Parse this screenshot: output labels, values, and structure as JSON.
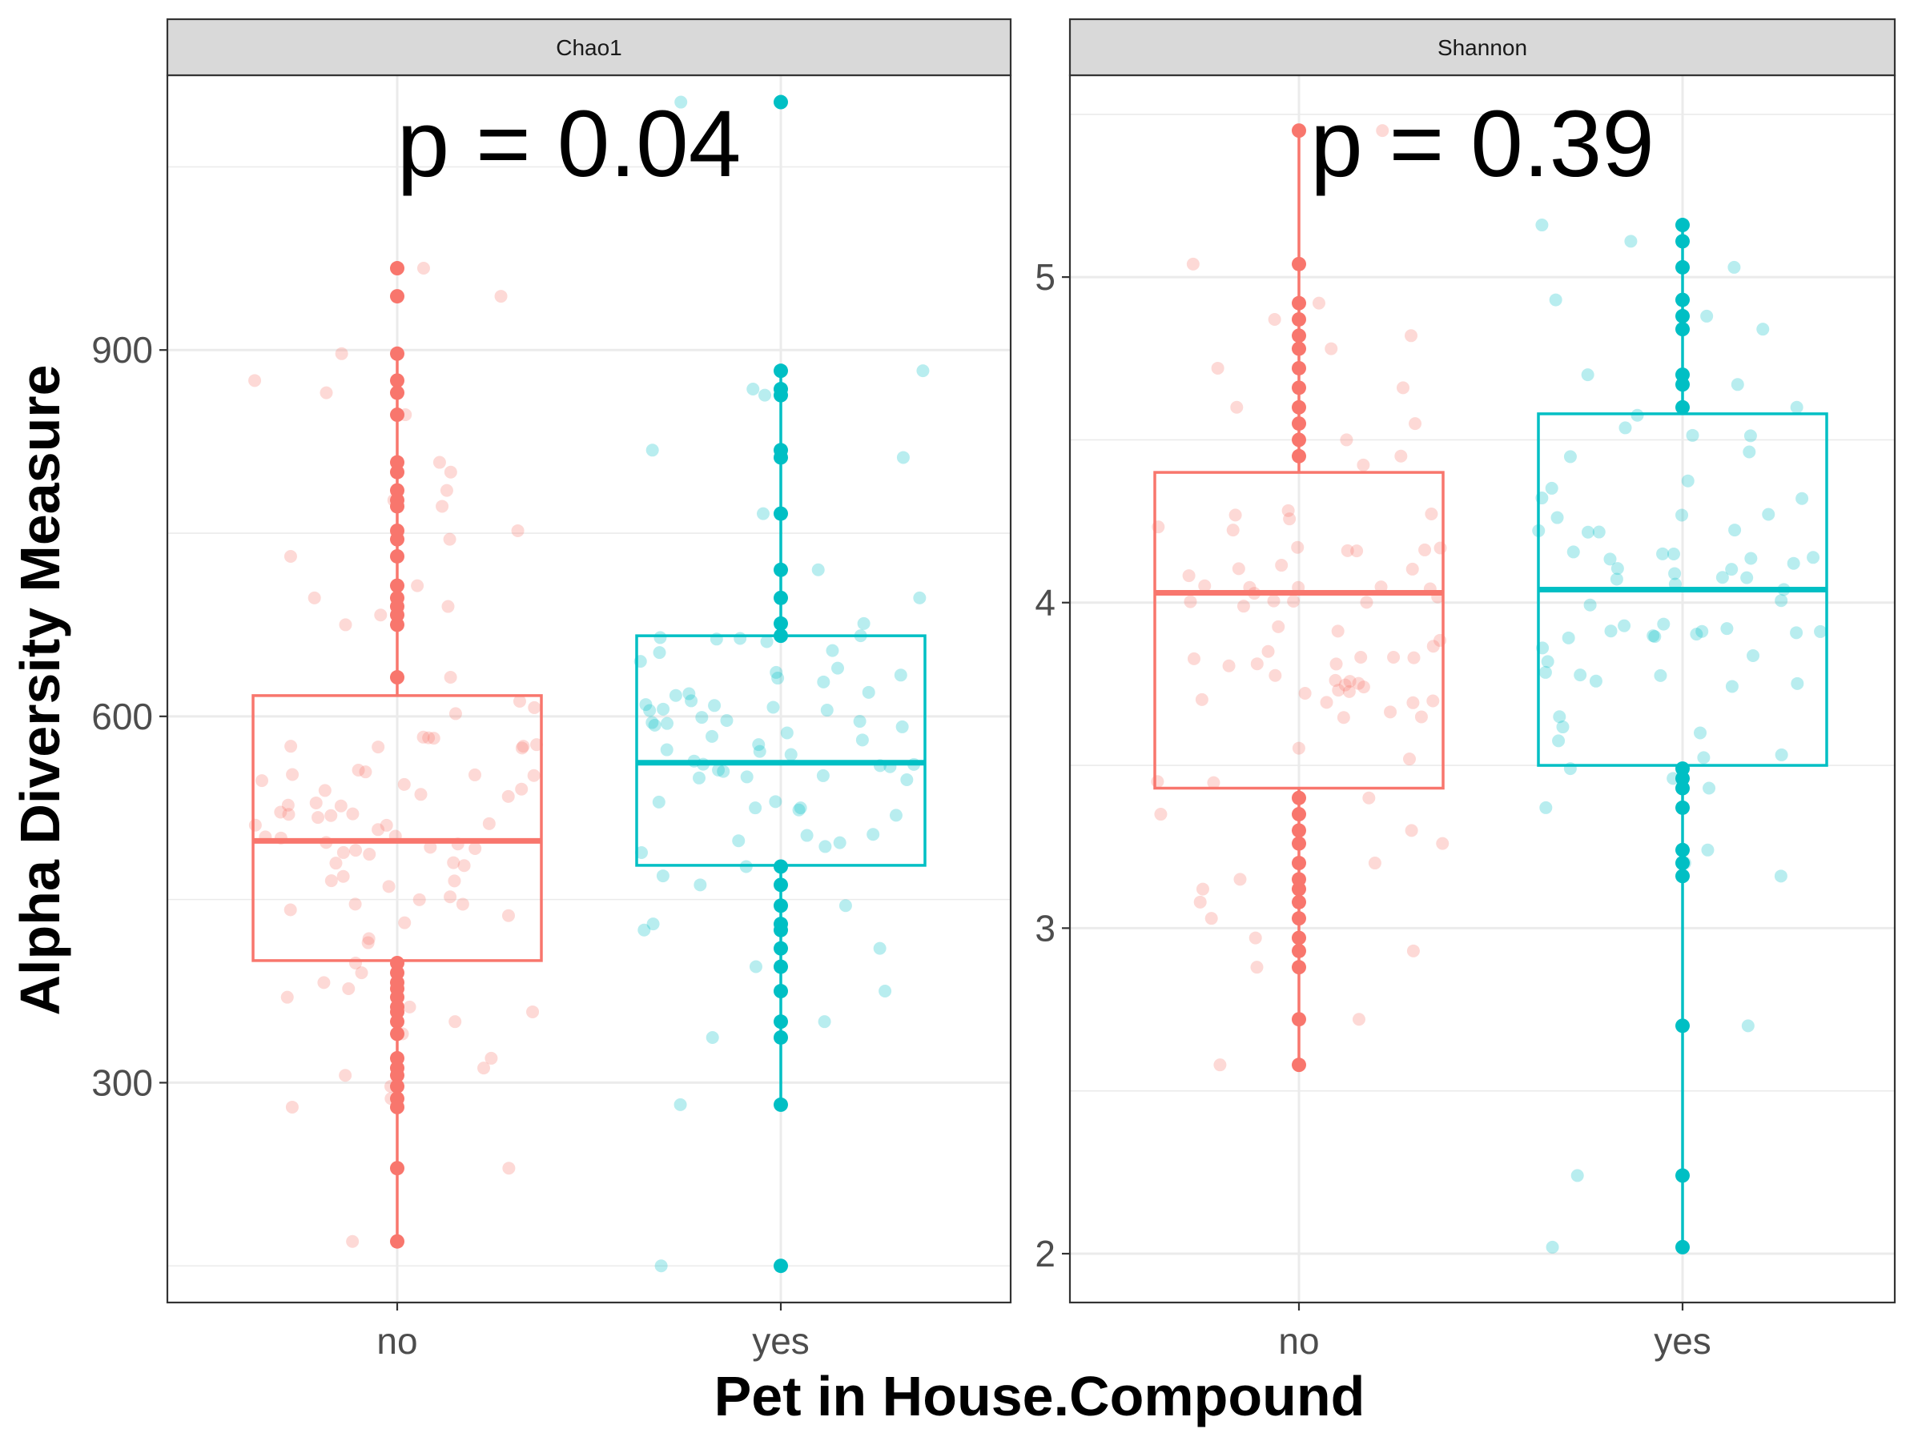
{
  "figure": {
    "xlabel": "Pet in House.Compound",
    "ylabel": "Alpha Diversity Measure"
  },
  "chart_data": [
    {
      "type": "box",
      "facet": "Chao1",
      "annotation": "p = 0.04",
      "categories": [
        "no",
        "yes"
      ],
      "colors": {
        "no": "#F8766D",
        "yes": "#00BFC4"
      },
      "ylim": [
        120,
        1125
      ],
      "yticks": [
        300,
        600,
        900
      ],
      "grid": true,
      "boxes": [
        {
          "category": "no",
          "q1": 400,
          "median": 498,
          "q3": 617,
          "whisker_low": 170,
          "whisker_high": 897
        },
        {
          "category": "yes",
          "q1": 478,
          "median": 562,
          "q3": 666,
          "whisker_low": 282,
          "whisker_high": 883
        }
      ],
      "points": {
        "no": [
          967,
          944,
          897,
          875,
          865,
          847,
          808,
          800,
          785,
          777,
          772,
          752,
          745,
          731,
          707,
          697,
          690,
          683,
          675,
          632,
          398,
          390,
          382,
          377,
          370,
          362,
          358,
          350,
          340,
          320,
          312,
          306,
          297,
          287,
          280,
          230,
          170
        ],
        "yes": [
          1103,
          883,
          868,
          863,
          818,
          812,
          766,
          720,
          697,
          676,
          666,
          477,
          462,
          445,
          430,
          425,
          410,
          395,
          375,
          350,
          337,
          282,
          150
        ]
      }
    },
    {
      "type": "box",
      "facet": "Shannon",
      "annotation": "p = 0.39",
      "categories": [
        "no",
        "yes"
      ],
      "colors": {
        "no": "#F8766D",
        "yes": "#00BFC4"
      },
      "ylim": [
        1.85,
        5.62
      ],
      "yticks": [
        2,
        3,
        4,
        5
      ],
      "grid": true,
      "boxes": [
        {
          "category": "no",
          "q1": 3.43,
          "median": 4.03,
          "q3": 4.4,
          "whisker_low": 2.58,
          "whisker_high": 5.45
        },
        {
          "category": "yes",
          "q1": 3.5,
          "median": 4.04,
          "q3": 4.58,
          "whisker_low": 2.02,
          "whisker_high": 5.16
        }
      ],
      "points": {
        "no": [
          5.45,
          5.04,
          4.92,
          4.87,
          4.82,
          4.78,
          4.72,
          4.66,
          4.6,
          4.55,
          4.5,
          4.45,
          3.4,
          3.35,
          3.3,
          3.26,
          3.2,
          3.15,
          3.12,
          3.08,
          3.03,
          2.97,
          2.93,
          2.88,
          2.72,
          2.58
        ],
        "yes": [
          5.16,
          5.11,
          5.03,
          4.93,
          4.88,
          4.84,
          4.7,
          4.67,
          4.6,
          3.49,
          3.46,
          3.43,
          3.37,
          3.24,
          3.2,
          3.16,
          2.7,
          2.24,
          2.02
        ]
      }
    }
  ]
}
